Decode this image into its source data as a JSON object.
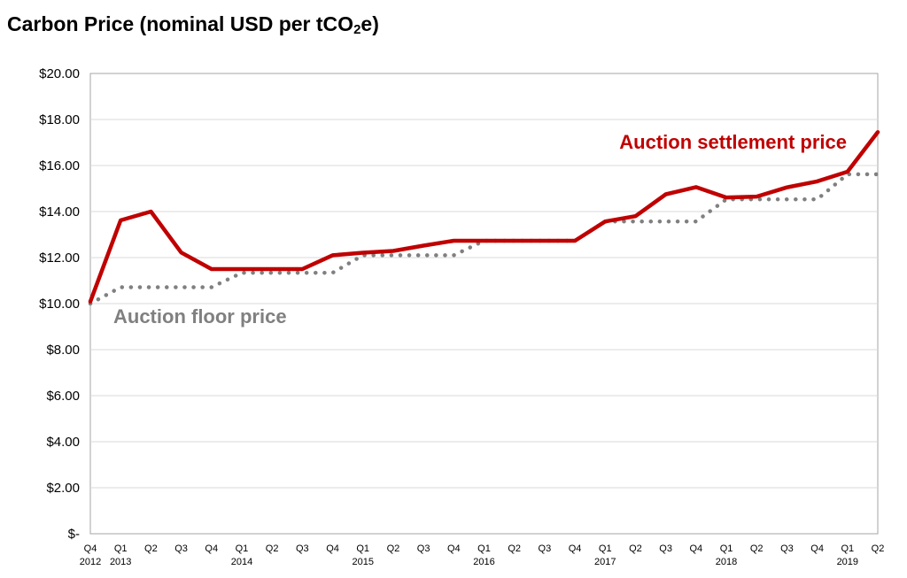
{
  "chart_data": {
    "type": "line",
    "title_prefix": "Carbon Price (nominal USD per tCO",
    "title_sub": "2",
    "title_suffix": "e)",
    "xlabel": "",
    "ylabel": "",
    "ylim": [
      0,
      20
    ],
    "y_ticks": [
      "$-",
      "$2.00",
      "$4.00",
      "$6.00",
      "$8.00",
      "$10.00",
      "$12.00",
      "$14.00",
      "$16.00",
      "$18.00",
      "$20.00"
    ],
    "grid": "horizontal",
    "categories": [
      {
        "q": "Q4",
        "year": "2012"
      },
      {
        "q": "Q1",
        "year": "2013"
      },
      {
        "q": "Q2",
        "year": ""
      },
      {
        "q": "Q3",
        "year": ""
      },
      {
        "q": "Q4",
        "year": ""
      },
      {
        "q": "Q1",
        "year": "2014"
      },
      {
        "q": "Q2",
        "year": ""
      },
      {
        "q": "Q3",
        "year": ""
      },
      {
        "q": "Q4",
        "year": ""
      },
      {
        "q": "Q1",
        "year": "2015"
      },
      {
        "q": "Q2",
        "year": ""
      },
      {
        "q": "Q3",
        "year": ""
      },
      {
        "q": "Q4",
        "year": ""
      },
      {
        "q": "Q1",
        "year": "2016"
      },
      {
        "q": "Q2",
        "year": ""
      },
      {
        "q": "Q3",
        "year": ""
      },
      {
        "q": "Q4",
        "year": ""
      },
      {
        "q": "Q1",
        "year": "2017"
      },
      {
        "q": "Q2",
        "year": ""
      },
      {
        "q": "Q3",
        "year": ""
      },
      {
        "q": "Q4",
        "year": ""
      },
      {
        "q": "Q1",
        "year": "2018"
      },
      {
        "q": "Q2",
        "year": ""
      },
      {
        "q": "Q3",
        "year": ""
      },
      {
        "q": "Q4",
        "year": ""
      },
      {
        "q": "Q1",
        "year": "2019"
      },
      {
        "q": "Q2",
        "year": ""
      }
    ],
    "series": [
      {
        "name": "Auction settlement price",
        "color": "#c00000",
        "style": "solid",
        "values": [
          10.09,
          13.62,
          14.0,
          12.22,
          11.5,
          11.5,
          11.5,
          11.5,
          12.1,
          12.21,
          12.29,
          12.52,
          12.73,
          12.73,
          12.73,
          12.73,
          12.73,
          13.57,
          13.8,
          14.75,
          15.06,
          14.61,
          14.65,
          15.05,
          15.31,
          15.73,
          17.45
        ]
      },
      {
        "name": "Auction floor price",
        "color": "#808080",
        "style": "dotted",
        "values": [
          10.0,
          10.71,
          10.71,
          10.71,
          10.71,
          11.34,
          11.34,
          11.34,
          11.34,
          12.1,
          12.1,
          12.1,
          12.1,
          12.73,
          12.73,
          12.73,
          12.73,
          13.57,
          13.57,
          13.57,
          13.57,
          14.53,
          14.53,
          14.53,
          14.53,
          15.62,
          15.62
        ]
      }
    ]
  }
}
